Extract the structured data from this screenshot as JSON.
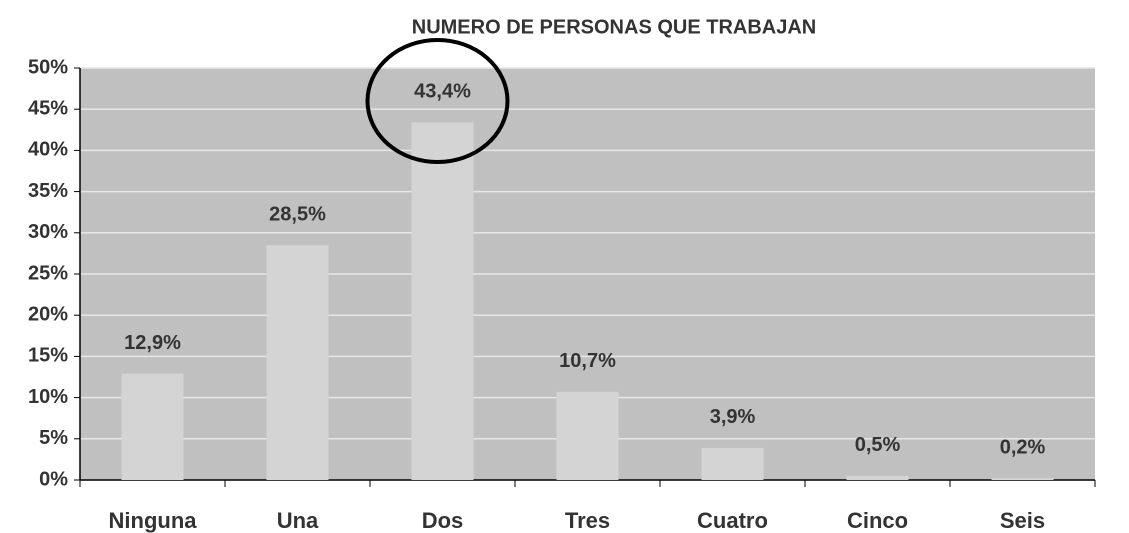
{
  "chart_data": {
    "type": "bar",
    "title": "NUMERO DE PERSONAS QUE TRABAJAN",
    "categories": [
      "Ninguna",
      "Una",
      "Dos",
      "Tres",
      "Cuatro",
      "Cinco",
      "Seis"
    ],
    "values": [
      12.9,
      28.5,
      43.4,
      10.7,
      3.9,
      0.5,
      0.2
    ],
    "value_labels": [
      "12,9%",
      "28,5%",
      "43,4%",
      "10,7%",
      "3,9%",
      "0,5%",
      "0,2%"
    ],
    "color": "#d4d4d4",
    "ylim": [
      0,
      50
    ],
    "yticks": [
      {
        "value": 0,
        "label": "0%"
      },
      {
        "value": 5,
        "label": "5%"
      },
      {
        "value": 10,
        "label": "10%"
      },
      {
        "value": 15,
        "label": "15%"
      },
      {
        "value": 20,
        "label": "20%"
      },
      {
        "value": 25,
        "label": "25%"
      },
      {
        "value": 30,
        "label": "30%"
      },
      {
        "value": 35,
        "label": "35%"
      },
      {
        "value": 40,
        "label": "40%"
      },
      {
        "value": 45,
        "label": "45%"
      },
      {
        "value": 50,
        "label": "50%"
      }
    ],
    "grid": true
  }
}
